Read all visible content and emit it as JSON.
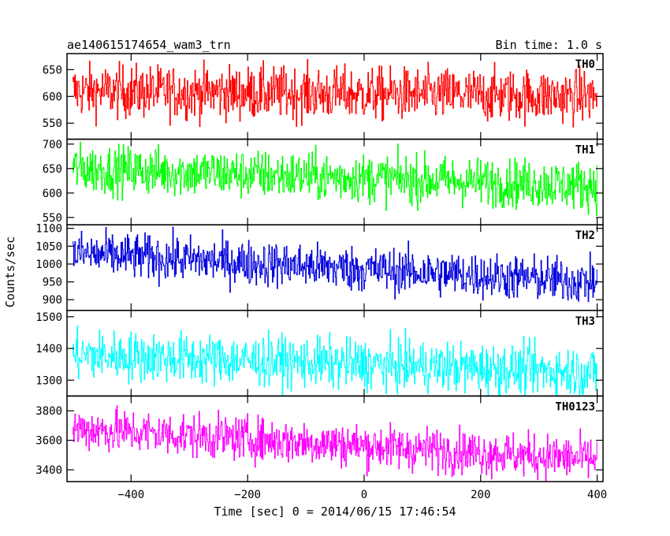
{
  "chart_data": {
    "type": "line",
    "title": "ae140615174654_wam3_trn",
    "subtitle": "Bin time: 1.0 s",
    "xlabel": "Time [sec] 0 = 2014/06/15 17:46:54",
    "ylabel": "Counts/sec",
    "xlim": [
      -510,
      410
    ],
    "x_ticks": [
      -400,
      -200,
      0,
      200,
      400
    ],
    "x_range": [
      -500,
      400
    ],
    "panels": [
      {
        "name": "TH0",
        "color": "#ff0000",
        "ylim": [
          520,
          680
        ],
        "y_ticks": [
          550,
          600,
          650
        ],
        "start": 610,
        "end": 600,
        "noise": 25
      },
      {
        "name": "TH1",
        "color": "#00ff00",
        "ylim": [
          535,
          710
        ],
        "y_ticks": [
          550,
          600,
          650,
          700
        ],
        "start": 650,
        "end": 615,
        "noise": 25
      },
      {
        "name": "TH2",
        "color": "#0000dd",
        "ylim": [
          870,
          1110
        ],
        "y_ticks": [
          900,
          950,
          1000,
          1050,
          1100
        ],
        "start": 1030,
        "end": 950,
        "noise": 32
      },
      {
        "name": "TH3",
        "color": "#00ffff",
        "ylim": [
          1250,
          1520
        ],
        "y_ticks": [
          1300,
          1400,
          1500
        ],
        "start": 1380,
        "end": 1325,
        "noise": 40
      },
      {
        "name": "TH0123",
        "color": "#ff00ff",
        "ylim": [
          3320,
          3900
        ],
        "y_ticks": [
          3400,
          3600,
          3800
        ],
        "start": 3680,
        "end": 3470,
        "noise": 75
      }
    ]
  }
}
